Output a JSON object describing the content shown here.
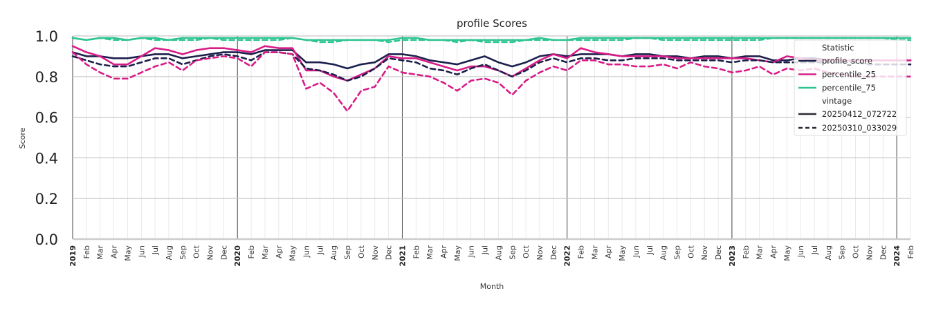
{
  "chart_data": {
    "type": "line",
    "title": "profile Scores",
    "xlabel": "Month",
    "ylabel": "Score",
    "ylim": [
      0.0,
      1.0
    ],
    "yticks": [
      "0.0",
      "0.2",
      "0.4",
      "0.6",
      "0.8",
      "1.0"
    ],
    "x": [
      "2019-01",
      "2019-02",
      "2019-03",
      "2019-04",
      "2019-05",
      "2019-06",
      "2019-07",
      "2019-08",
      "2019-09",
      "2019-10",
      "2019-11",
      "2019-12",
      "2020-01",
      "2020-02",
      "2020-03",
      "2020-04",
      "2020-05",
      "2020-06",
      "2020-07",
      "2020-08",
      "2020-09",
      "2020-10",
      "2020-11",
      "2020-12",
      "2021-01",
      "2021-02",
      "2021-03",
      "2021-04",
      "2021-05",
      "2021-06",
      "2021-07",
      "2021-08",
      "2021-09",
      "2021-10",
      "2021-11",
      "2021-12",
      "2022-01",
      "2022-02",
      "2022-03",
      "2022-04",
      "2022-05",
      "2022-06",
      "2022-07",
      "2022-08",
      "2022-09",
      "2022-10",
      "2022-11",
      "2022-12",
      "2023-01",
      "2023-02",
      "2023-03",
      "2023-04",
      "2023-05",
      "2023-06",
      "2023-07",
      "2023-08",
      "2023-09",
      "2023-10",
      "2023-11",
      "2023-12",
      "2024-01",
      "2024-02"
    ],
    "xtick_labels": [
      "2019",
      "Feb",
      "Mar",
      "Apr",
      "May",
      "Jun",
      "Jul",
      "Aug",
      "Sep",
      "Oct",
      "Nov",
      "Dec",
      "2020",
      "Feb",
      "Mar",
      "Apr",
      "May",
      "Jun",
      "Jul",
      "Aug",
      "Sep",
      "Oct",
      "Nov",
      "Dec",
      "2021",
      "Feb",
      "Mar",
      "Apr",
      "May",
      "Jun",
      "Jul",
      "Aug",
      "Sep",
      "Oct",
      "Nov",
      "Dec",
      "2022",
      "Feb",
      "Mar",
      "Apr",
      "May",
      "Jun",
      "Jul",
      "Aug",
      "Sep",
      "Oct",
      "Nov",
      "Dec",
      "2023",
      "Feb",
      "Mar",
      "Apr",
      "May",
      "Jun",
      "Jul",
      "Aug",
      "Sep",
      "Oct",
      "Nov",
      "Dec",
      "2024",
      "Feb"
    ],
    "year_ticks": [
      "2019",
      "2020",
      "2021",
      "2022",
      "2023",
      "2024"
    ],
    "grid": true,
    "legend": {
      "placement": "top-right",
      "heading_statistic": "Statistic",
      "heading_vintage": "vintage",
      "statistics": [
        {
          "name": "profile_score",
          "color": "#1b1f4b"
        },
        {
          "name": "percentile_25",
          "color": "#d81b87"
        },
        {
          "name": "percentile_75",
          "color": "#2ec492"
        }
      ],
      "vintages": [
        {
          "name": "20250412_072722",
          "style": "solid"
        },
        {
          "name": "20250310_033029",
          "style": "dashed"
        }
      ]
    },
    "series": [
      {
        "statistic": "profile_score",
        "vintage": "20250412_072722",
        "color": "#1b1f4b",
        "dash": false,
        "values": [
          0.92,
          0.9,
          0.9,
          0.89,
          0.89,
          0.9,
          0.91,
          0.91,
          0.89,
          0.9,
          0.91,
          0.92,
          0.92,
          0.91,
          0.93,
          0.93,
          0.93,
          0.87,
          0.87,
          0.86,
          0.84,
          0.86,
          0.87,
          0.91,
          0.91,
          0.9,
          0.88,
          0.87,
          0.86,
          0.88,
          0.9,
          0.87,
          0.85,
          0.87,
          0.9,
          0.91,
          0.9,
          0.91,
          0.91,
          0.91,
          0.9,
          0.91,
          0.91,
          0.9,
          0.9,
          0.89,
          0.9,
          0.9,
          0.89,
          0.9,
          0.9,
          0.88,
          0.88,
          0.89,
          0.89,
          0.88,
          0.88,
          0.88,
          0.88,
          0.88,
          0.88,
          0.88
        ]
      },
      {
        "statistic": "percentile_25",
        "vintage": "20250412_072722",
        "color": "#d81b87",
        "dash": false,
        "values": [
          0.95,
          0.92,
          0.9,
          0.86,
          0.86,
          0.9,
          0.94,
          0.93,
          0.91,
          0.93,
          0.94,
          0.94,
          0.93,
          0.92,
          0.95,
          0.94,
          0.94,
          0.83,
          0.83,
          0.8,
          0.78,
          0.81,
          0.84,
          0.9,
          0.89,
          0.89,
          0.87,
          0.85,
          0.83,
          0.85,
          0.85,
          0.83,
          0.8,
          0.84,
          0.88,
          0.91,
          0.89,
          0.94,
          0.92,
          0.91,
          0.9,
          0.9,
          0.9,
          0.9,
          0.89,
          0.89,
          0.89,
          0.89,
          0.89,
          0.89,
          0.88,
          0.87,
          0.9,
          0.89,
          0.88,
          0.88,
          0.88,
          0.88,
          0.88,
          0.88,
          0.88,
          0.88
        ]
      },
      {
        "statistic": "percentile_75",
        "vintage": "20250412_072722",
        "color": "#2ec492",
        "dash": false,
        "values": [
          0.99,
          0.98,
          0.99,
          0.99,
          0.98,
          0.99,
          0.99,
          0.98,
          0.99,
          0.99,
          0.99,
          0.99,
          0.99,
          0.99,
          0.99,
          0.99,
          0.99,
          0.98,
          0.98,
          0.98,
          0.98,
          0.98,
          0.98,
          0.98,
          0.99,
          0.99,
          0.98,
          0.98,
          0.98,
          0.98,
          0.98,
          0.98,
          0.98,
          0.98,
          0.99,
          0.98,
          0.98,
          0.99,
          0.99,
          0.99,
          0.99,
          0.99,
          0.99,
          0.99,
          0.99,
          0.99,
          0.99,
          0.99,
          0.99,
          0.99,
          0.99,
          0.99,
          0.99,
          0.99,
          0.99,
          0.99,
          0.99,
          0.99,
          0.99,
          0.99,
          0.99,
          0.99
        ]
      },
      {
        "statistic": "profile_score",
        "vintage": "20250310_033029",
        "color": "#1b1f4b",
        "dash": true,
        "values": [
          0.9,
          0.88,
          0.86,
          0.85,
          0.85,
          0.87,
          0.89,
          0.89,
          0.86,
          0.88,
          0.9,
          0.91,
          0.9,
          0.88,
          0.92,
          0.92,
          0.91,
          0.84,
          0.83,
          0.81,
          0.78,
          0.8,
          0.84,
          0.89,
          0.88,
          0.87,
          0.84,
          0.83,
          0.81,
          0.84,
          0.86,
          0.83,
          0.8,
          0.83,
          0.87,
          0.89,
          0.87,
          0.89,
          0.89,
          0.88,
          0.88,
          0.89,
          0.89,
          0.89,
          0.88,
          0.88,
          0.88,
          0.88,
          0.87,
          0.88,
          0.88,
          0.87,
          0.87,
          0.87,
          0.87,
          0.87,
          0.87,
          0.87,
          0.86,
          0.86,
          0.86,
          0.86
        ]
      },
      {
        "statistic": "percentile_25",
        "vintage": "20250310_033029",
        "color": "#d81b87",
        "dash": true,
        "values": [
          0.92,
          0.86,
          0.82,
          0.79,
          0.79,
          0.82,
          0.85,
          0.87,
          0.83,
          0.88,
          0.89,
          0.9,
          0.89,
          0.85,
          0.92,
          0.92,
          0.91,
          0.74,
          0.77,
          0.72,
          0.63,
          0.73,
          0.75,
          0.85,
          0.82,
          0.81,
          0.8,
          0.77,
          0.73,
          0.78,
          0.79,
          0.77,
          0.71,
          0.78,
          0.82,
          0.85,
          0.83,
          0.88,
          0.88,
          0.86,
          0.86,
          0.85,
          0.85,
          0.86,
          0.84,
          0.87,
          0.85,
          0.84,
          0.82,
          0.83,
          0.85,
          0.81,
          0.84,
          0.83,
          0.84,
          0.82,
          0.81,
          0.8,
          0.8,
          0.8,
          0.8,
          0.8
        ]
      },
      {
        "statistic": "percentile_75",
        "vintage": "20250310_033029",
        "color": "#2ec492",
        "dash": true,
        "values": [
          0.99,
          0.98,
          0.99,
          0.98,
          0.98,
          0.99,
          0.98,
          0.98,
          0.98,
          0.98,
          0.99,
          0.98,
          0.98,
          0.98,
          0.98,
          0.98,
          0.99,
          0.98,
          0.97,
          0.97,
          0.98,
          0.98,
          0.98,
          0.97,
          0.98,
          0.98,
          0.98,
          0.98,
          0.97,
          0.98,
          0.97,
          0.97,
          0.97,
          0.98,
          0.98,
          0.98,
          0.98,
          0.98,
          0.98,
          0.98,
          0.98,
          0.99,
          0.99,
          0.98,
          0.98,
          0.98,
          0.98,
          0.98,
          0.98,
          0.98,
          0.98,
          0.99,
          0.99,
          0.99,
          0.99,
          0.99,
          0.99,
          0.99,
          0.99,
          0.99,
          0.98,
          0.98
        ]
      }
    ]
  }
}
